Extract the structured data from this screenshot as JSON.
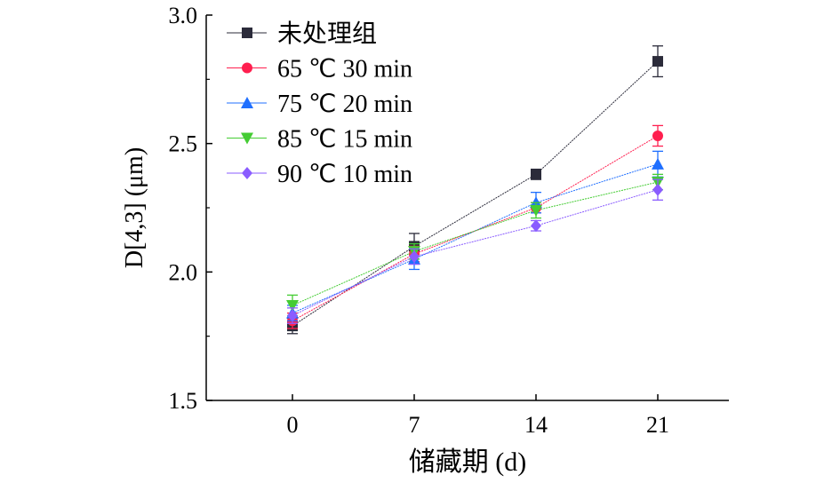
{
  "chart_data": {
    "type": "line",
    "xlabel": "储藏期 (d)",
    "ylabel": "D[4,3] (μm)",
    "x": [
      0,
      7,
      14,
      21
    ],
    "xticks": [
      "0",
      "7",
      "14",
      "21"
    ],
    "yticks": [
      "1.5",
      "2.0",
      "2.5",
      "3.0"
    ],
    "ylim": [
      1.5,
      3.0
    ],
    "xlim": [
      -5,
      28
    ],
    "legend_position": "top-left",
    "series": [
      {
        "name": "未处理组",
        "color": "#2b2b3a",
        "marker": "square",
        "values": [
          1.79,
          2.1,
          2.38,
          2.82
        ],
        "errors": [
          0.03,
          0.05,
          0.02,
          0.06
        ]
      },
      {
        "name": "65 ℃ 30 min",
        "color": "#ff1f4f",
        "marker": "circle",
        "values": [
          1.81,
          2.07,
          2.25,
          2.53
        ],
        "errors": [
          0.03,
          0.03,
          0.02,
          0.04
        ]
      },
      {
        "name": "75 ℃ 20 min",
        "color": "#1f6fff",
        "marker": "triangle-up",
        "values": [
          1.84,
          2.05,
          2.27,
          2.42
        ],
        "errors": [
          0.03,
          0.04,
          0.04,
          0.05
        ]
      },
      {
        "name": "85 ℃ 15 min",
        "color": "#44cc33",
        "marker": "triangle-down",
        "values": [
          1.87,
          2.08,
          2.24,
          2.35
        ],
        "errors": [
          0.04,
          0.03,
          0.03,
          0.03
        ]
      },
      {
        "name": "90 ℃ 10 min",
        "color": "#8a5cff",
        "marker": "diamond",
        "values": [
          1.83,
          2.06,
          2.18,
          2.32
        ],
        "errors": [
          0.03,
          0.03,
          0.02,
          0.04
        ]
      }
    ]
  }
}
